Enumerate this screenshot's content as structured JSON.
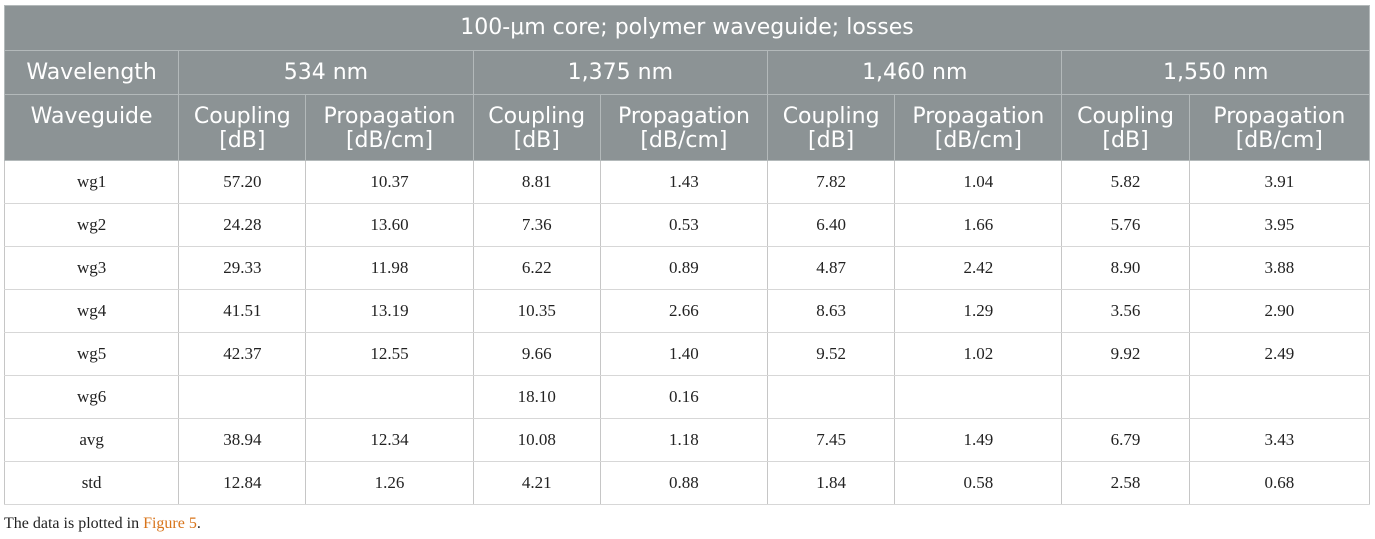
{
  "table": {
    "title": "100-μm core; polymer waveguide; losses",
    "wavelength_label": "Wavelength",
    "waveguide_label": "Waveguide",
    "wavelengths": [
      "534 nm",
      "1,375 nm",
      "1,460 nm",
      "1,550 nm"
    ],
    "sub_headers": [
      {
        "line1": "Coupling",
        "line2": "[dB]"
      },
      {
        "line1": "Propagation",
        "line2": "[dB/cm]"
      }
    ],
    "rows": [
      {
        "label": "wg1",
        "values": [
          "57.20",
          "10.37",
          "8.81",
          "1.43",
          "7.82",
          "1.04",
          "5.82",
          "3.91"
        ]
      },
      {
        "label": "wg2",
        "values": [
          "24.28",
          "13.60",
          "7.36",
          "0.53",
          "6.40",
          "1.66",
          "5.76",
          "3.95"
        ]
      },
      {
        "label": "wg3",
        "values": [
          "29.33",
          "11.98",
          "6.22",
          "0.89",
          "4.87",
          "2.42",
          "8.90",
          "3.88"
        ]
      },
      {
        "label": "wg4",
        "values": [
          "41.51",
          "13.19",
          "10.35",
          "2.66",
          "8.63",
          "1.29",
          "3.56",
          "2.90"
        ]
      },
      {
        "label": "wg5",
        "values": [
          "42.37",
          "12.55",
          "9.66",
          "1.40",
          "9.52",
          "1.02",
          "9.92",
          "2.49"
        ]
      },
      {
        "label": "wg6",
        "values": [
          "",
          "",
          "18.10",
          "0.16",
          "",
          "",
          "",
          ""
        ]
      },
      {
        "label": "avg",
        "values": [
          "38.94",
          "12.34",
          "10.08",
          "1.18",
          "7.45",
          "1.49",
          "6.79",
          "3.43"
        ]
      },
      {
        "label": "std",
        "values": [
          "12.84",
          "1.26",
          "4.21",
          "0.88",
          "1.84",
          "0.58",
          "2.58",
          "0.68"
        ]
      }
    ]
  },
  "footnote": {
    "prefix": "The data is plotted in ",
    "link_text": "Figure 5",
    "suffix": "."
  },
  "colors": {
    "header_bg": "#8c9395",
    "link": "#d8741a"
  }
}
